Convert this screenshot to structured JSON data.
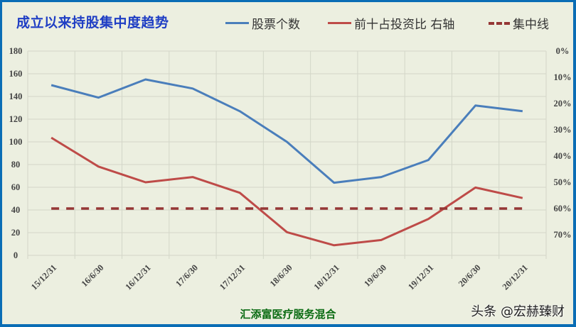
{
  "title": "成立以来持股集中度趋势",
  "footer": "汇添富医疗服务混合",
  "watermark": "头条 @宏赫臻财",
  "legend": [
    {
      "label": "股票个数",
      "color": "#4a7ebb",
      "style": "solid"
    },
    {
      "label": "前十占投资比 右轴",
      "color": "#be4b48",
      "style": "solid"
    },
    {
      "label": "集中线",
      "color": "#953735",
      "style": "dashed"
    }
  ],
  "chart_data": {
    "type": "line",
    "title": "成立以来持股集中度趋势",
    "categories": [
      "15/12/31",
      "16/6/30",
      "16/12/31",
      "17/6/30",
      "17/12/31",
      "18/6/30",
      "18/12/31",
      "19/6/30",
      "19/12/31",
      "20/6/30",
      "20/12/31"
    ],
    "series": [
      {
        "name": "股票个数",
        "axis": "left",
        "color": "#4a7ebb",
        "values": [
          150,
          139,
          155,
          147,
          127,
          100,
          64,
          69,
          84,
          132,
          127
        ]
      },
      {
        "name": "前十占投资比 右轴",
        "axis": "right",
        "color": "#be4b48",
        "unit": "%",
        "values": [
          33,
          44,
          50,
          48,
          54,
          69,
          74,
          72,
          64,
          52,
          56
        ]
      },
      {
        "name": "集中线",
        "axis": "right",
        "color": "#953735",
        "style": "dashed",
        "unit": "%",
        "values": [
          60,
          60,
          60,
          60,
          60,
          60,
          60,
          60,
          60,
          60,
          60
        ]
      }
    ],
    "left_axis": {
      "ticks": [
        "0",
        "20",
        "40",
        "60",
        "80",
        "100",
        "120",
        "140",
        "160",
        "180"
      ],
      "ylim": [
        0,
        180
      ]
    },
    "right_axis": {
      "ticks": [
        "0%",
        "10%",
        "20%",
        "30%",
        "40%",
        "50%",
        "60%",
        "70%"
      ],
      "reversed": true,
      "ylim": [
        0,
        78
      ]
    },
    "xlabel": "",
    "ylabel": "",
    "grid": true,
    "legend_position": "top"
  }
}
